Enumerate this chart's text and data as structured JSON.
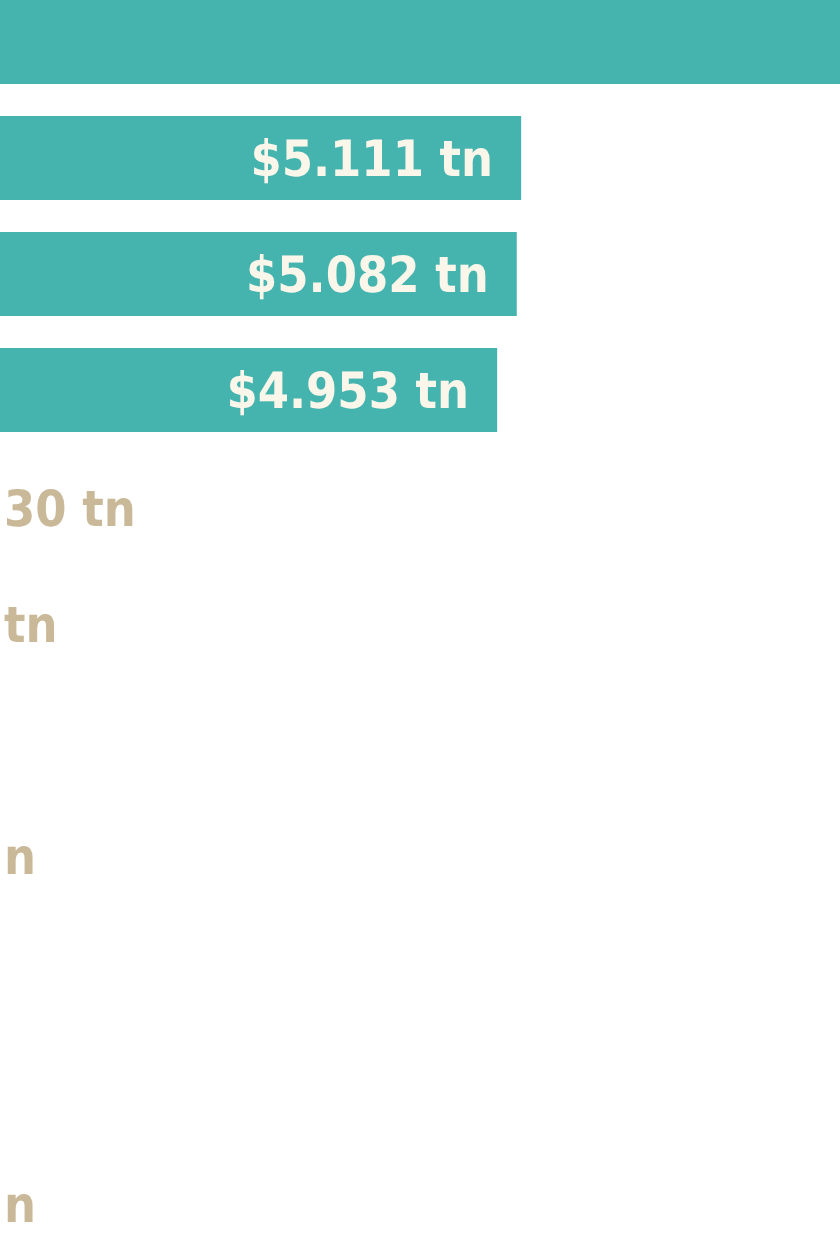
{
  "chart_data": {
    "type": "bar",
    "orientation": "horizontal",
    "categories": [
      null,
      null,
      null,
      null
    ],
    "values": [
      7.21,
      5.111,
      5.082,
      4.953
    ],
    "value_labels": [
      null,
      "$5.111 tn",
      "$5.082 tn",
      "$4.953 tn"
    ],
    "color": "#45b3ae",
    "xlim": [
      1.68,
      7.21
    ],
    "annotations": [
      "30 tn",
      "tn",
      "n",
      "n"
    ]
  }
}
